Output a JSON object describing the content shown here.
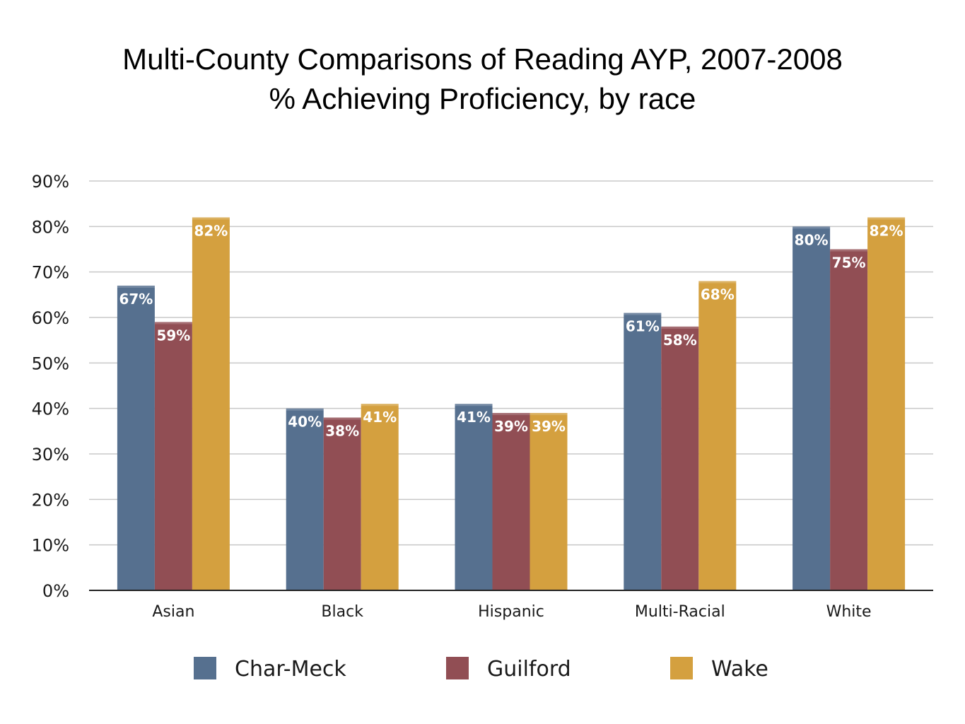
{
  "title_line1": "Multi-County Comparisons of Reading AYP, 2007-2008",
  "title_line2": "% Achieving Proficiency, by race",
  "chart_data": {
    "type": "bar",
    "title": "Multi-County Comparisons of Reading AYP, 2007-2008",
    "subtitle": "% Achieving Proficiency, by race",
    "categories": [
      "Asian",
      "Black",
      "Hispanic",
      "Multi-Racial",
      "White"
    ],
    "series": [
      {
        "name": "Char-Meck",
        "color": "#56708f",
        "values": [
          67,
          40,
          41,
          61,
          80
        ],
        "labels": [
          "67%",
          "40%",
          "41%",
          "61%",
          "80%"
        ]
      },
      {
        "name": "Guilford",
        "color": "#914e54",
        "values": [
          59,
          38,
          39,
          58,
          75
        ],
        "labels": [
          "59%",
          "38%",
          "39%",
          "58%",
          "75%"
        ]
      },
      {
        "name": "Wake",
        "color": "#d4a03f",
        "values": [
          82,
          41,
          39,
          68,
          82
        ],
        "labels": [
          "82%",
          "41%",
          "39%",
          "68%",
          "82%"
        ]
      }
    ],
    "ylim": [
      0,
      90
    ],
    "yticks": [
      "0%",
      "10%",
      "20%",
      "30%",
      "40%",
      "50%",
      "60%",
      "70%",
      "80%",
      "90%"
    ],
    "xlabel": "",
    "ylabel": "",
    "grid": true,
    "legend": "bottom"
  }
}
